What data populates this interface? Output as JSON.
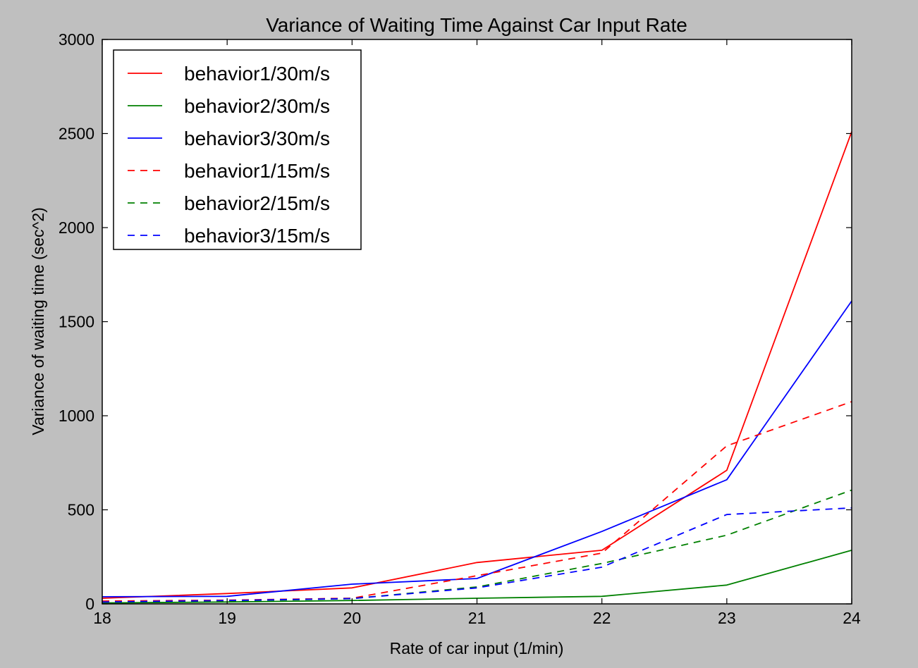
{
  "chart_data": {
    "type": "line",
    "title": "Variance of Waiting Time Against Car Input Rate",
    "xlabel": "Rate of car input (1/min)",
    "ylabel": "Variance of waiting time (sec^2)",
    "x": [
      18,
      19,
      20,
      21,
      22,
      23,
      24
    ],
    "xlim": [
      18,
      24
    ],
    "ylim": [
      0,
      3000
    ],
    "xticks": [
      "18",
      "19",
      "20",
      "21",
      "22",
      "23",
      "24"
    ],
    "yticks": [
      "0",
      "500",
      "1000",
      "1500",
      "2000",
      "2500",
      "3000"
    ],
    "grid": false,
    "legend_position": "top-left",
    "series": [
      {
        "name": "behavior1/30m/s",
        "color": "#ff0000",
        "dash": "solid",
        "values": [
          30,
          55,
          85,
          220,
          285,
          710,
          2510
        ]
      },
      {
        "name": "behavior2/30m/s",
        "color": "#008000",
        "dash": "solid",
        "values": [
          5,
          10,
          18,
          30,
          40,
          100,
          285
        ]
      },
      {
        "name": "behavior3/30m/s",
        "color": "#0000ff",
        "dash": "solid",
        "values": [
          38,
          40,
          105,
          135,
          385,
          660,
          1610
        ]
      },
      {
        "name": "behavior1/15m/s",
        "color": "#ff0000",
        "dash": "dashed",
        "values": [
          15,
          20,
          30,
          150,
          270,
          840,
          1075
        ]
      },
      {
        "name": "behavior2/15m/s",
        "color": "#008000",
        "dash": "dashed",
        "values": [
          8,
          15,
          28,
          90,
          215,
          365,
          605
        ]
      },
      {
        "name": "behavior3/15m/s",
        "color": "#0000ff",
        "dash": "dashed",
        "values": [
          10,
          18,
          28,
          85,
          195,
          475,
          510
        ]
      }
    ]
  }
}
